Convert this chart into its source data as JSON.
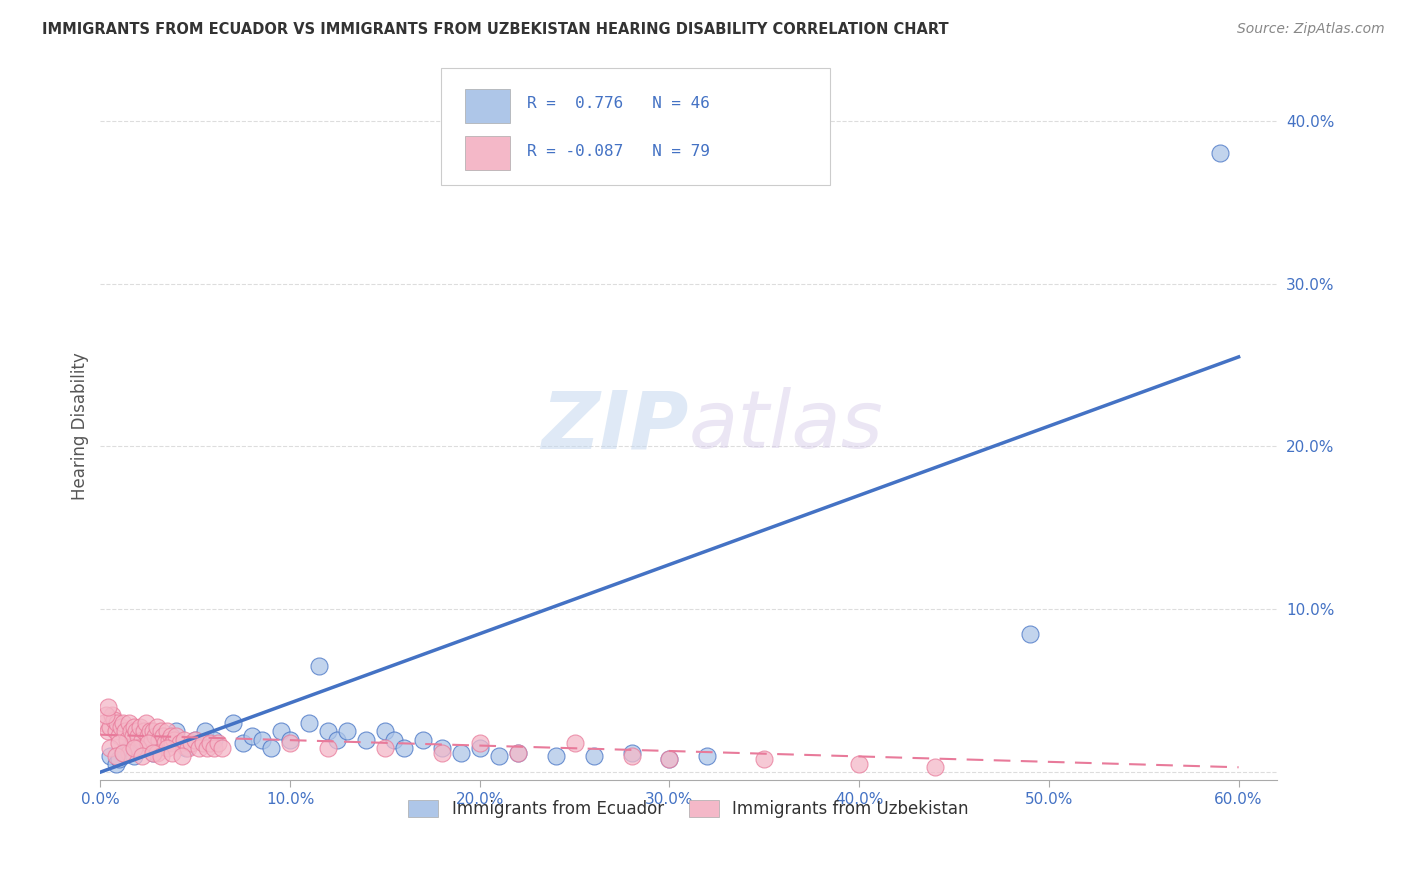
{
  "title": "IMMIGRANTS FROM ECUADOR VS IMMIGRANTS FROM UZBEKISTAN HEARING DISABILITY CORRELATION CHART",
  "source": "Source: ZipAtlas.com",
  "ylabel": "Hearing Disability",
  "xlim": [
    0.0,
    0.62
  ],
  "ylim": [
    -0.005,
    0.43
  ],
  "ecuador_R": 0.776,
  "ecuador_N": 46,
  "uzbekistan_R": -0.087,
  "uzbekistan_N": 79,
  "ecuador_color": "#aec6e8",
  "uzbekistan_color": "#f4b8c8",
  "ecuador_line_color": "#4472c4",
  "uzbekistan_line_color": "#e87a9a",
  "background_color": "#ffffff",
  "watermark_zip": "ZIP",
  "watermark_atlas": "atlas",
  "grid_color": "#dddddd",
  "tick_color": "#4472c4",
  "ecuador_line_x0": 0.0,
  "ecuador_line_y0": 0.0,
  "ecuador_line_x1": 0.6,
  "ecuador_line_y1": 0.255,
  "uzbekistan_line_x0": 0.0,
  "uzbekistan_line_y0": 0.023,
  "uzbekistan_line_x1": 0.6,
  "uzbekistan_line_y1": 0.003,
  "ytick_positions": [
    0.0,
    0.1,
    0.2,
    0.3,
    0.4
  ],
  "ytick_labels": [
    "",
    "10.0%",
    "20.0%",
    "30.0%",
    "40.0%"
  ],
  "xtick_positions": [
    0.0,
    0.1,
    0.2,
    0.3,
    0.4,
    0.5,
    0.6
  ],
  "xtick_labels": [
    "0.0%",
    "10.0%",
    "20.0%",
    "30.0%",
    "40.0%",
    "50.0%",
    "60.0%"
  ]
}
